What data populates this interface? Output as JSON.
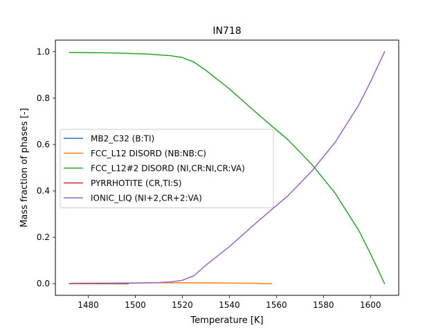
{
  "chart_data": {
    "type": "line",
    "title": "IN718",
    "xlabel": "Temperature [K]",
    "ylabel": "Mass fraction of phases [-]",
    "xlim": [
      1466,
      1612
    ],
    "ylim": [
      -0.05,
      1.05
    ],
    "xticks": [
      1480,
      1500,
      1520,
      1540,
      1560,
      1580,
      1600
    ],
    "yticks": [
      0.0,
      0.2,
      0.4,
      0.6,
      0.8,
      1.0
    ],
    "xtick_labels": [
      "1480",
      "1500",
      "1520",
      "1540",
      "1560",
      "1580",
      "1600"
    ],
    "ytick_labels": [
      "0.0",
      "0.2",
      "0.4",
      "0.6",
      "0.8",
      "1.0"
    ],
    "grid": false,
    "legend_position": "center-left",
    "series": [
      {
        "name": "MB2_C32  (B:TI)",
        "color": "#1f77b4",
        "x": [
          1472,
          1497
        ],
        "y": [
          0.0,
          0.0
        ]
      },
      {
        "name": "FCC_L12 DISORD (NB:NB:C)",
        "color": "#ff7f0e",
        "x": [
          1472,
          1490,
          1510,
          1525,
          1540,
          1550,
          1558
        ],
        "y": [
          0.002,
          0.003,
          0.004,
          0.004,
          0.003,
          0.002,
          0.0
        ]
      },
      {
        "name": "FCC_L12#2 DISORD (NI,CR:NI,CR:VA)",
        "color": "#2ca02c",
        "x": [
          1472,
          1490,
          1505,
          1515,
          1520,
          1525,
          1530,
          1540,
          1550,
          1558,
          1565,
          1575,
          1585,
          1595,
          1600,
          1606
        ],
        "y": [
          0.997,
          0.995,
          0.99,
          0.983,
          0.975,
          0.955,
          0.92,
          0.84,
          0.75,
          0.68,
          0.62,
          0.515,
          0.39,
          0.23,
          0.13,
          0.0
        ]
      },
      {
        "name": "PYRRHOTITE  (CR,TI:S)",
        "color": "#d62728",
        "x": [
          1472,
          1497
        ],
        "y": [
          0.0,
          0.001
        ]
      },
      {
        "name": "IONIC_LIQ  (NI+2,CR+2:VA)",
        "color": "#9467bd",
        "x": [
          1472,
          1500,
          1510,
          1515,
          1520,
          1525,
          1530,
          1540,
          1550,
          1558,
          1565,
          1575,
          1585,
          1595,
          1600,
          1606
        ],
        "y": [
          0.0,
          0.003,
          0.005,
          0.008,
          0.015,
          0.035,
          0.08,
          0.16,
          0.25,
          0.32,
          0.38,
          0.485,
          0.61,
          0.77,
          0.87,
          1.0
        ]
      }
    ]
  }
}
